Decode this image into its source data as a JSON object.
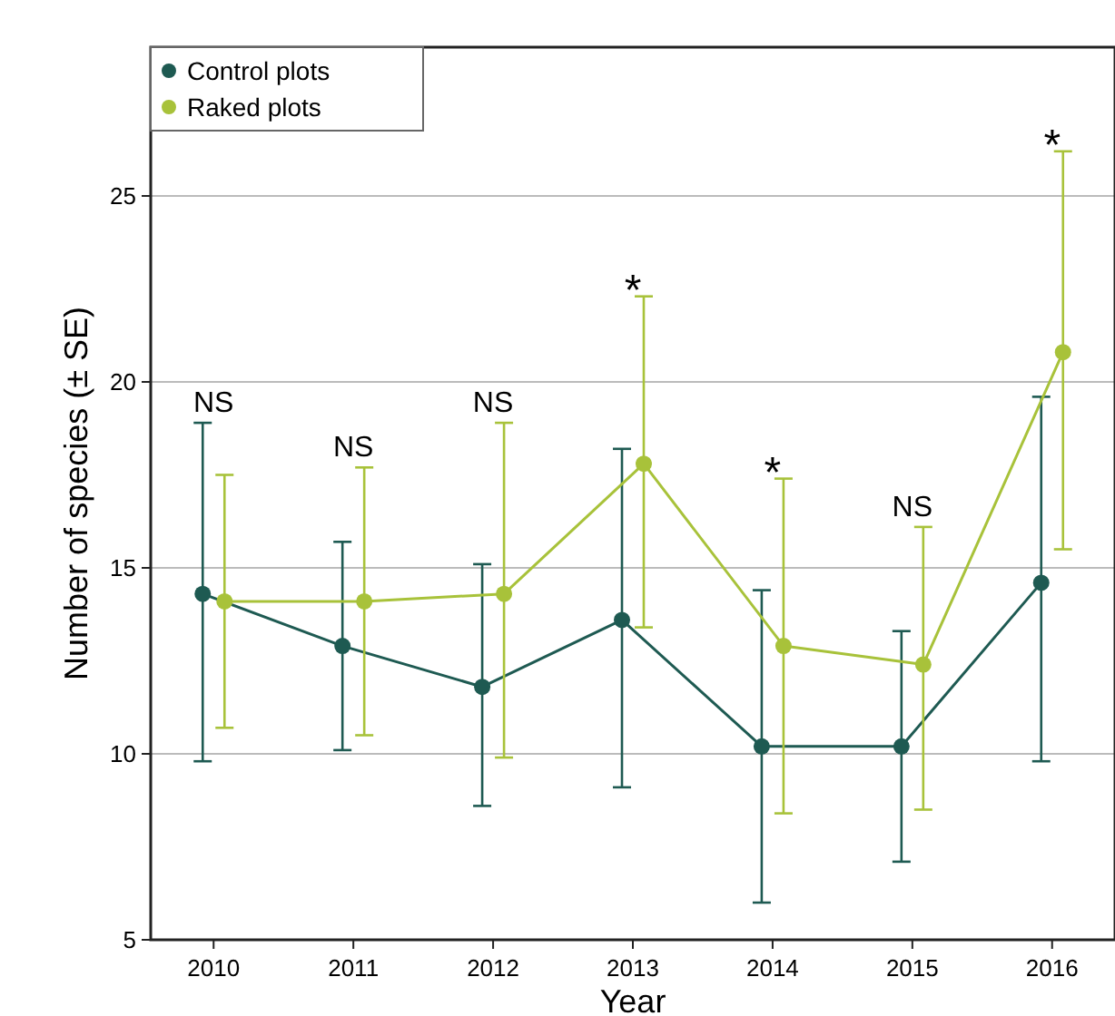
{
  "chart_data": {
    "type": "line",
    "xlabel": "Year",
    "ylabel": "Number of species (± SE)",
    "categories": [
      "2010",
      "2011",
      "2012",
      "2013",
      "2014",
      "2015",
      "2016"
    ],
    "series": [
      {
        "name": "Control plots",
        "color": "#1e5a52",
        "values": [
          14.3,
          12.9,
          11.8,
          13.6,
          10.2,
          10.2,
          14.6
        ],
        "errors": [
          [
            9.8,
            18.9
          ],
          [
            10.1,
            15.7
          ],
          [
            8.6,
            15.1
          ],
          [
            9.1,
            18.2
          ],
          [
            6.0,
            14.4
          ],
          [
            7.1,
            13.3
          ],
          [
            9.8,
            19.6
          ]
        ]
      },
      {
        "name": "Raked plots",
        "color": "#a8c23a",
        "values": [
          14.1,
          14.1,
          14.3,
          17.8,
          12.9,
          12.4,
          20.8
        ],
        "errors": [
          [
            10.7,
            17.5
          ],
          [
            10.5,
            17.7
          ],
          [
            9.9,
            18.9
          ],
          [
            13.4,
            22.3
          ],
          [
            8.4,
            17.4
          ],
          [
            8.5,
            16.1
          ],
          [
            15.5,
            26.2
          ]
        ]
      }
    ],
    "ylim": [
      5,
      29
    ],
    "yticks": [
      5,
      10,
      15,
      20,
      25
    ],
    "grid": "y",
    "legend": "top left",
    "marker": "circle",
    "line_style": "solid",
    "annotations": [
      "NS",
      "NS",
      "NS",
      "*",
      "*",
      "NS",
      "*"
    ]
  }
}
